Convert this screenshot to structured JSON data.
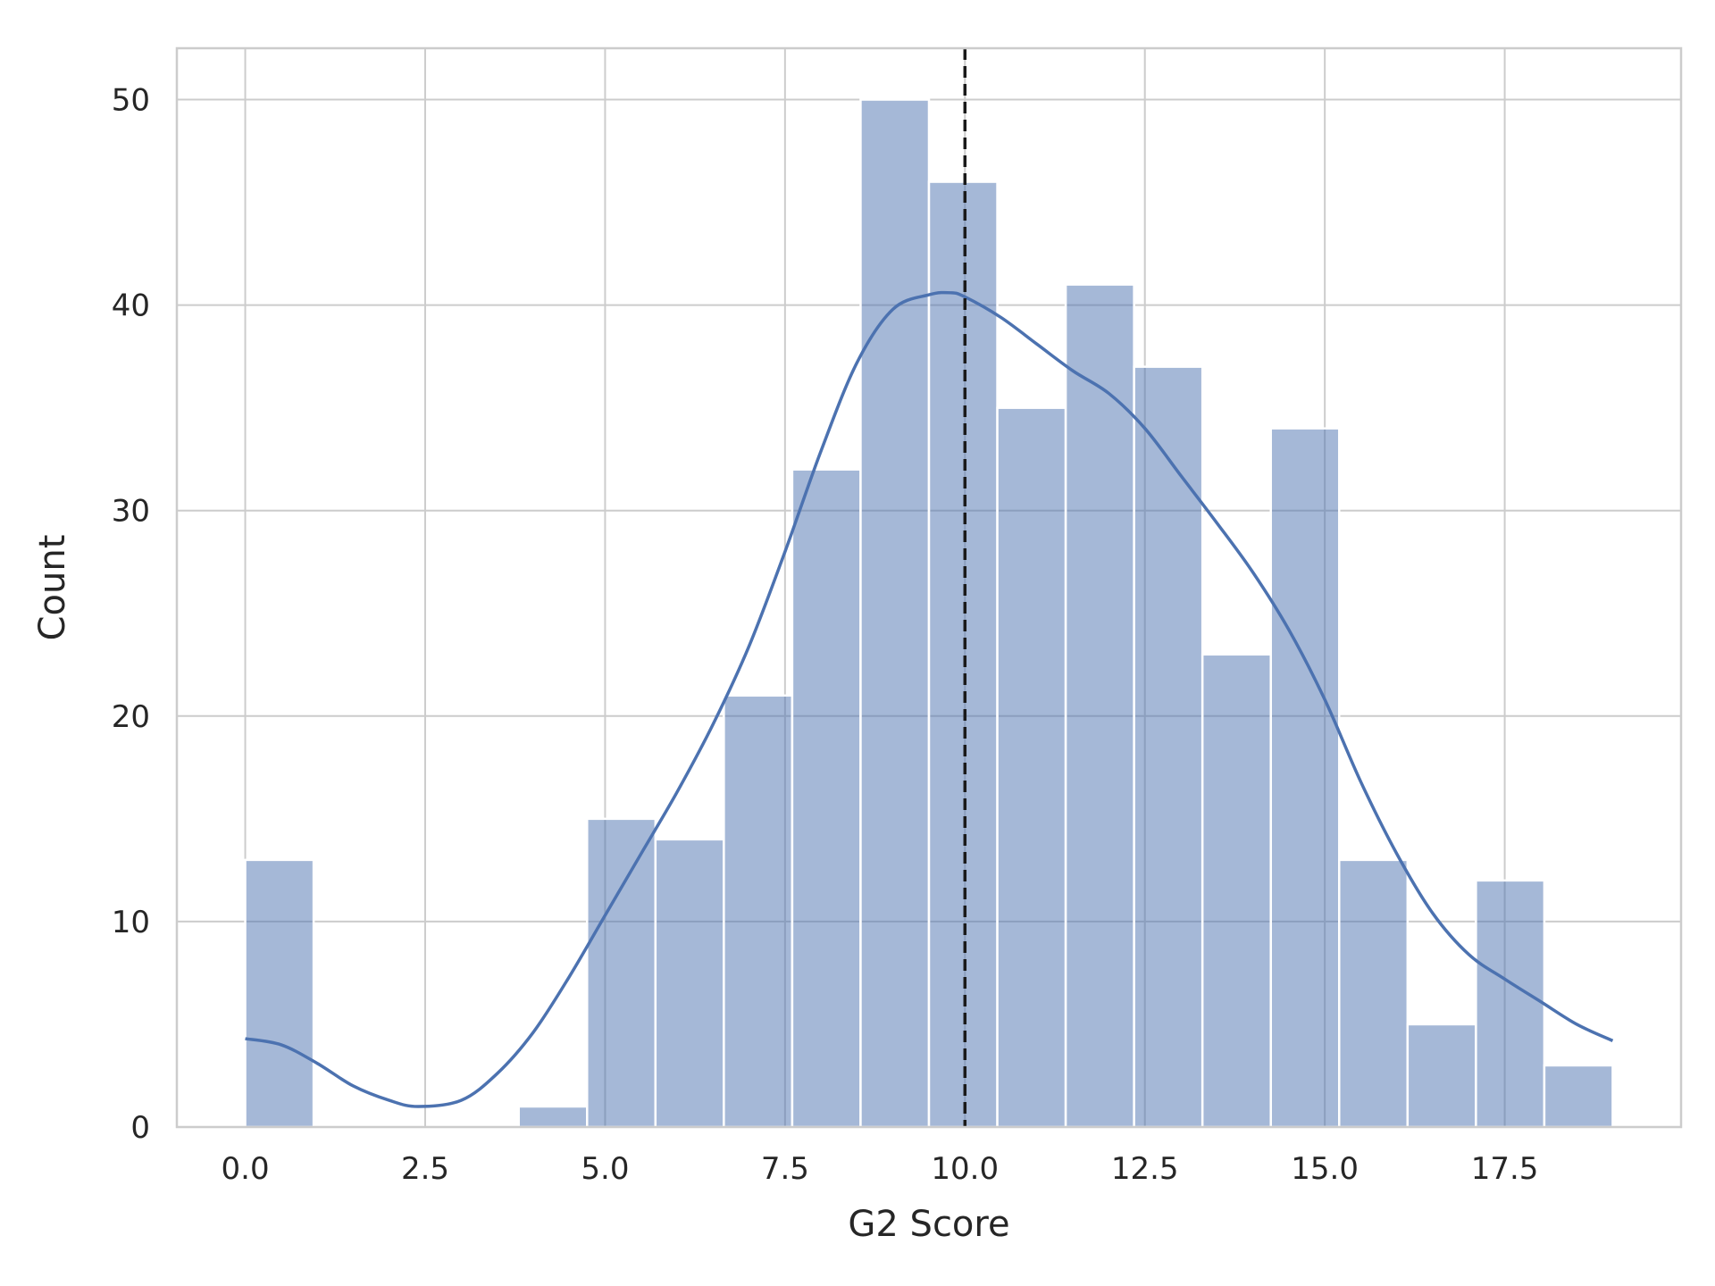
{
  "chart_data": {
    "type": "bar",
    "subtype": "histogram-with-kde",
    "xlabel": "G2 Score",
    "ylabel": "Count",
    "xlim": [
      -0.95,
      19.95
    ],
    "ylim": [
      0,
      52.5
    ],
    "grid": true,
    "x_ticks": [
      "0.0",
      "2.5",
      "5.0",
      "7.5",
      "10.0",
      "12.5",
      "15.0",
      "17.5"
    ],
    "x_tick_values": [
      0,
      2.5,
      5,
      7.5,
      10,
      12.5,
      15,
      17.5
    ],
    "y_ticks": [
      "0",
      "10",
      "20",
      "30",
      "40",
      "50"
    ],
    "y_tick_values": [
      0,
      10,
      20,
      30,
      40,
      50
    ],
    "bins": [
      {
        "x0": 0.0,
        "x1": 0.95,
        "count": 13
      },
      {
        "x0": 0.95,
        "x1": 1.9,
        "count": 0
      },
      {
        "x0": 1.9,
        "x1": 2.85,
        "count": 0
      },
      {
        "x0": 2.85,
        "x1": 3.8,
        "count": 0
      },
      {
        "x0": 3.8,
        "x1": 4.75,
        "count": 1
      },
      {
        "x0": 4.75,
        "x1": 5.7,
        "count": 15
      },
      {
        "x0": 5.7,
        "x1": 6.65,
        "count": 14
      },
      {
        "x0": 6.65,
        "x1": 7.6,
        "count": 21
      },
      {
        "x0": 7.6,
        "x1": 8.55,
        "count": 32
      },
      {
        "x0": 8.55,
        "x1": 9.5,
        "count": 50
      },
      {
        "x0": 9.5,
        "x1": 10.45,
        "count": 46
      },
      {
        "x0": 10.45,
        "x1": 11.4,
        "count": 35
      },
      {
        "x0": 11.4,
        "x1": 12.35,
        "count": 41
      },
      {
        "x0": 12.35,
        "x1": 13.3,
        "count": 37
      },
      {
        "x0": 13.3,
        "x1": 14.25,
        "count": 23
      },
      {
        "x0": 14.25,
        "x1": 15.2,
        "count": 34
      },
      {
        "x0": 15.2,
        "x1": 16.15,
        "count": 13
      },
      {
        "x0": 16.15,
        "x1": 17.1,
        "count": 5
      },
      {
        "x0": 17.1,
        "x1": 18.05,
        "count": 12
      },
      {
        "x0": 18.05,
        "x1": 19.0,
        "count": 3
      }
    ],
    "kde": {
      "x": [
        0,
        0.5,
        1,
        1.5,
        2,
        2.4,
        3,
        3.5,
        4,
        4.5,
        5,
        5.5,
        6,
        6.5,
        7,
        7.5,
        8,
        8.5,
        9,
        9.5,
        9.8,
        10,
        10.5,
        11,
        11.5,
        12,
        12.5,
        13,
        13.5,
        14,
        14.5,
        15,
        15.5,
        16,
        16.5,
        17,
        17.5,
        18,
        18.5,
        19
      ],
      "y": [
        4.3,
        4.0,
        3.1,
        2.0,
        1.3,
        1.0,
        1.3,
        2.6,
        4.6,
        7.3,
        10.3,
        13.3,
        16.3,
        19.6,
        23.4,
        28.0,
        32.9,
        37.2,
        39.8,
        40.5,
        40.6,
        40.4,
        39.4,
        38.1,
        36.8,
        35.7,
        34.0,
        31.7,
        29.4,
        27.0,
        24.2,
        20.8,
        16.8,
        13.3,
        10.4,
        8.4,
        7.2,
        6.1,
        5.0,
        4.2
      ]
    },
    "mean_line_x": 10.0,
    "colors": {
      "bar_fill": "#4c72b0",
      "bar_fill_opacity": 0.5,
      "kde_line": "#4c72b0",
      "mean_line": "#1a1a1a",
      "grid": "#cccccc",
      "spine": "#cccccc"
    }
  }
}
